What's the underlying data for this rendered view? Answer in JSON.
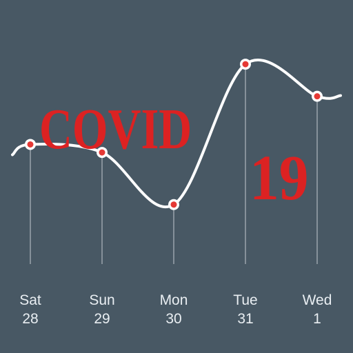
{
  "chart_data": {
    "type": "line",
    "title": "",
    "categories": [
      "Sat",
      "Sun",
      "Mon",
      "Tue",
      "Wed"
    ],
    "dates": [
      "28",
      "29",
      "30",
      "31",
      "1"
    ],
    "values": [
      60,
      56,
      30,
      100,
      84
    ],
    "ylim": [
      0,
      110
    ],
    "grid": false,
    "line_color": "#ffffff",
    "marker_color": "#e53935"
  },
  "overlay": {
    "word": "COVID",
    "number": "19",
    "color": "#dc2222"
  },
  "colors": {
    "background": "#485864",
    "label": "#e9eef2",
    "drop_line": "#9aa4ac"
  }
}
